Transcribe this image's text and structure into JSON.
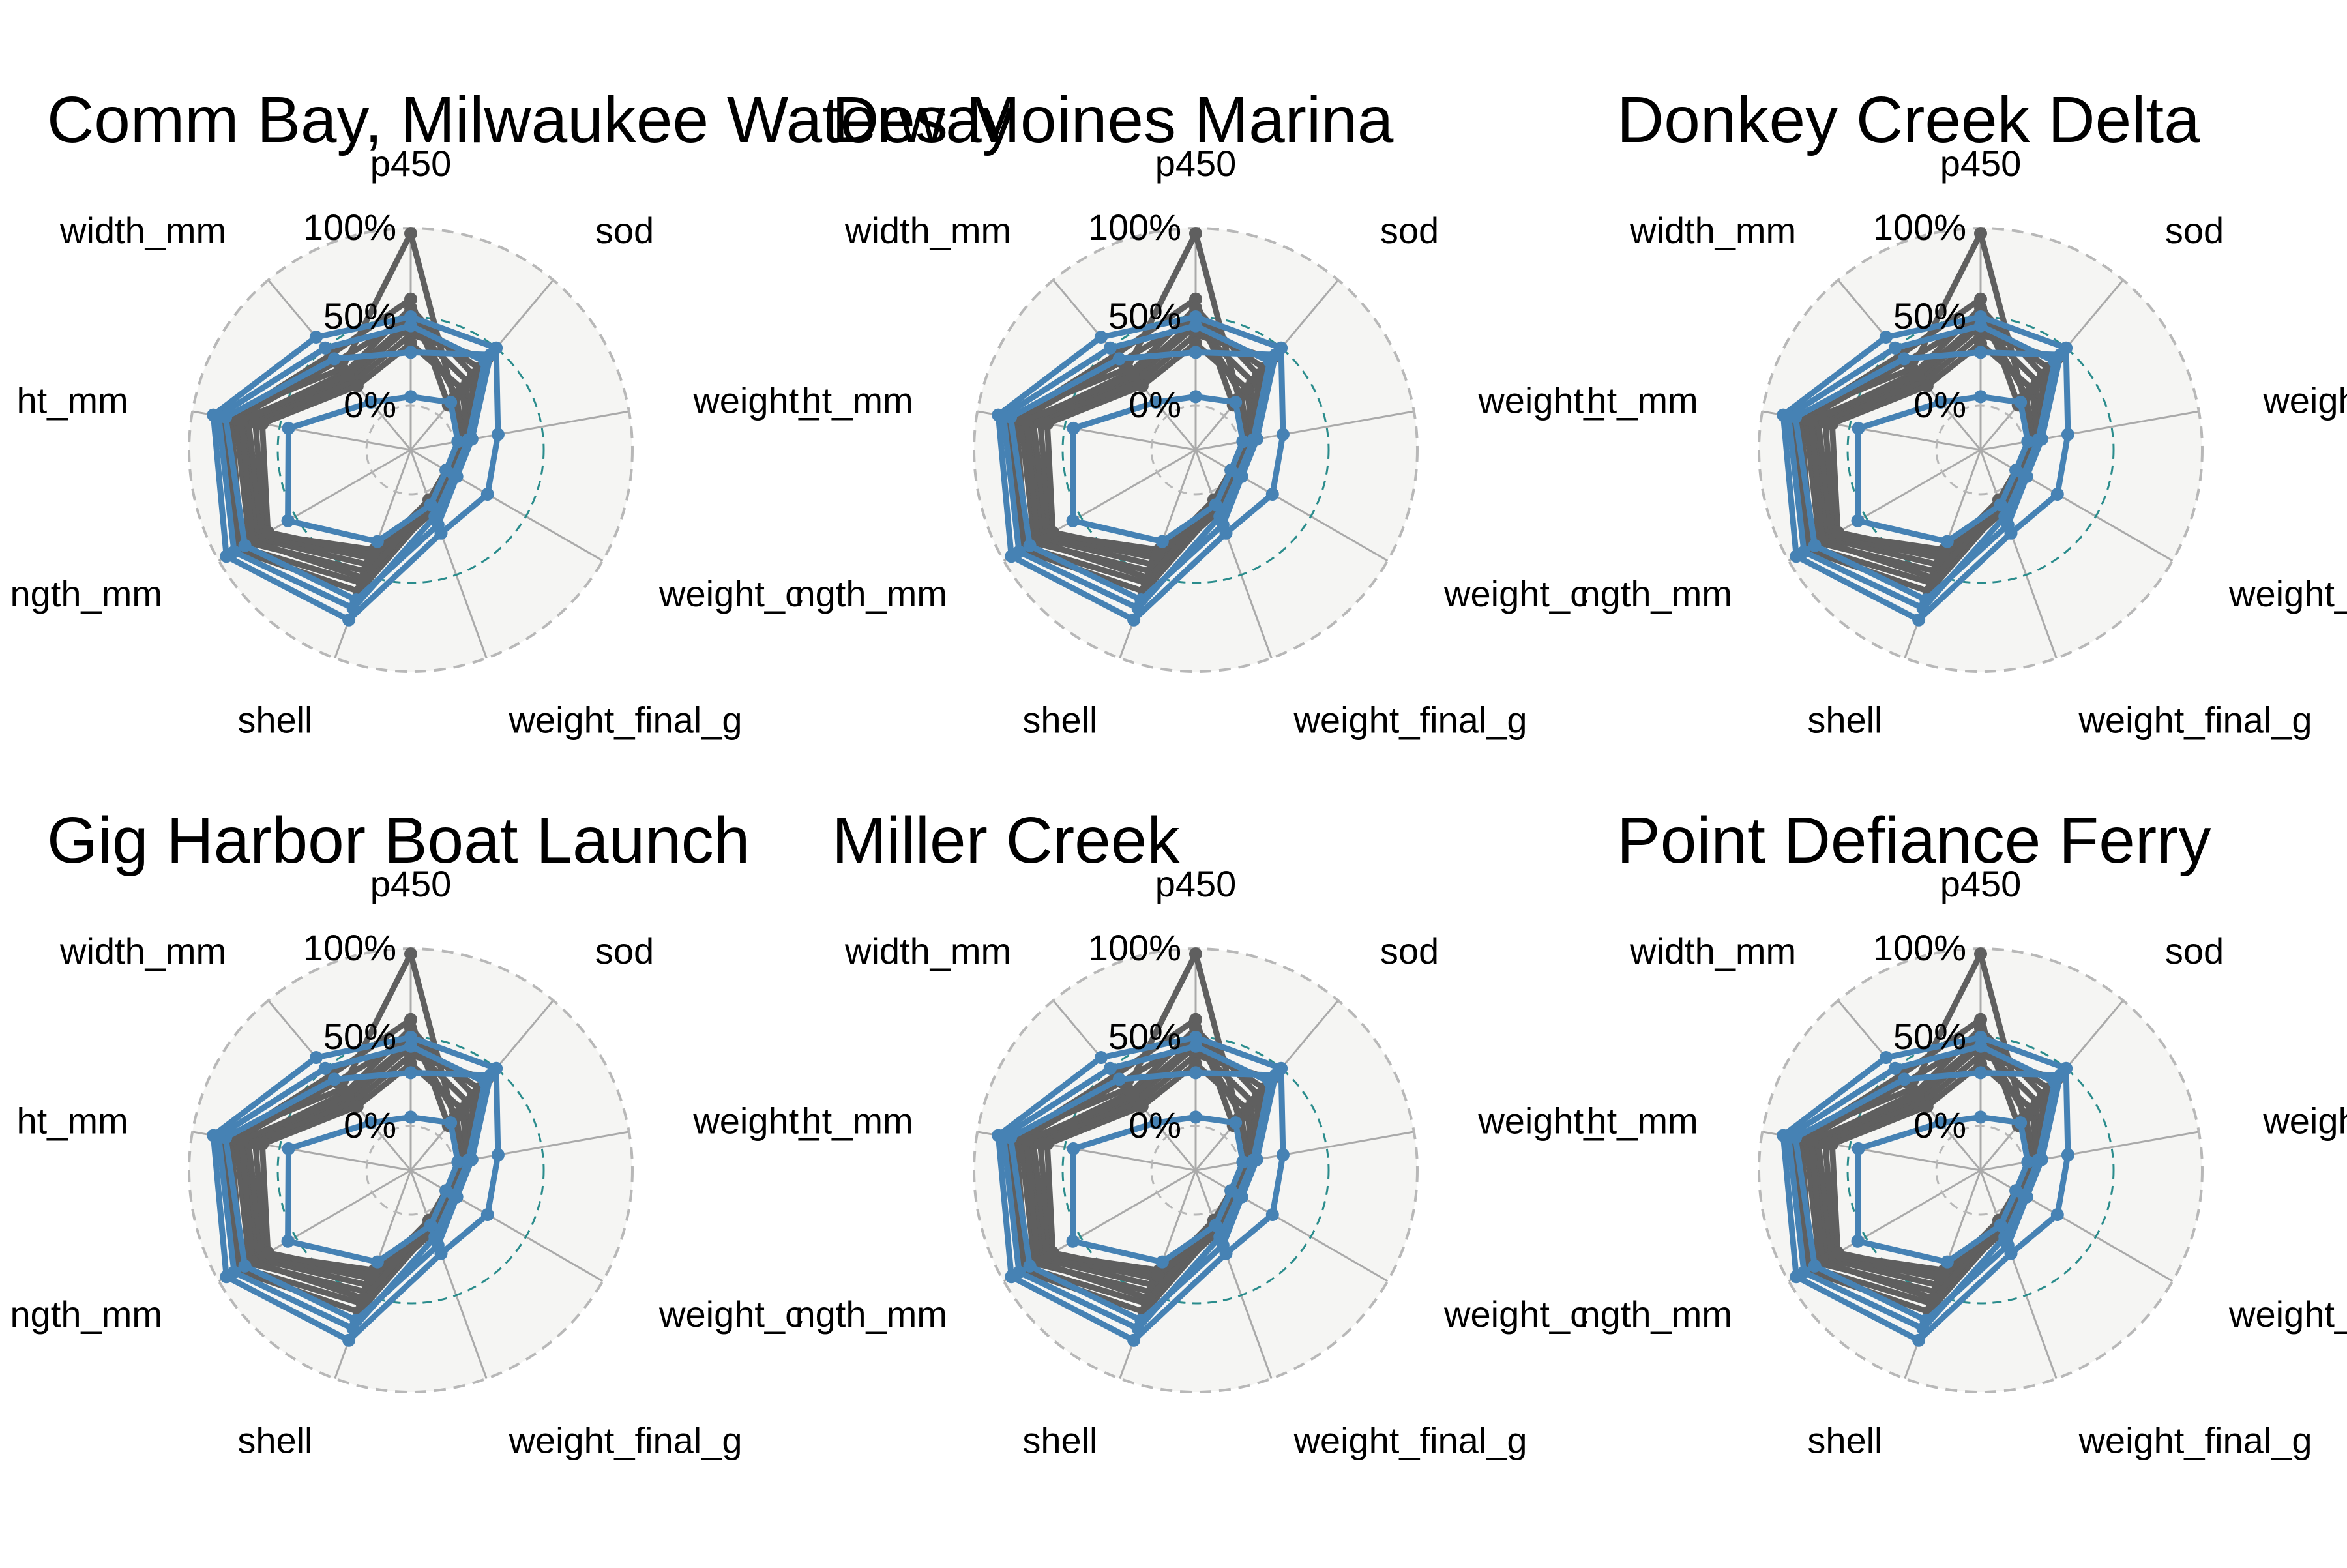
{
  "chart_data": {
    "type": "radar",
    "axes": [
      "p450",
      "sod",
      "weight_initial_g",
      "weight_change_g",
      "weight_final_g",
      "shell",
      "length_mm",
      "height_mm",
      "width_mm"
    ],
    "axis_labels": [
      "p450",
      "sod",
      "weight_",
      "weight_c",
      "weight_final_g",
      "shell",
      "ngth_mm",
      "ht_mm",
      "width_mm"
    ],
    "grid_labels": [
      "0%",
      "50%",
      "100%"
    ],
    "grid_values": [
      0,
      50,
      100
    ],
    "range": [
      -25,
      100
    ],
    "colors": {
      "highlight": "#4682B4",
      "other": "#5F5F5F",
      "mid_ring": "#2A8C8C",
      "outer_ring": "#B8B8B8",
      "spoke": "#AAAAAA",
      "panel_bg": "#F5F5F3"
    },
    "background_series": [
      [
        97,
        13,
        6,
        -1,
        10,
        60,
        88,
        82,
        35
      ],
      [
        60,
        8,
        10,
        1,
        8,
        55,
        85,
        78,
        45
      ],
      [
        50,
        15,
        5,
        3,
        12,
        48,
        80,
        75,
        40
      ],
      [
        55,
        30,
        9,
        2,
        6,
        44,
        75,
        70,
        32
      ],
      [
        45,
        25,
        4,
        -2,
        5,
        40,
        72,
        68,
        28
      ],
      [
        40,
        42,
        7,
        0,
        9,
        35,
        70,
        64,
        25
      ],
      [
        48,
        35,
        3,
        4,
        7,
        52,
        78,
        72,
        30
      ],
      [
        35,
        20,
        8,
        1,
        11,
        38,
        68,
        60,
        22
      ]
    ],
    "panels": [
      {
        "title": "Comm Bay, Milwaukee Waterway",
        "highlight_series": [
          [
            50,
            50,
            25,
            25,
            25,
            77,
            95,
            88,
            58
          ],
          [
            30,
            45,
            10,
            5,
            20,
            65,
            83,
            81,
            42
          ],
          [
            5,
            10,
            2,
            -2,
            8,
            30,
            55,
            45,
            10
          ],
          [
            45,
            40,
            8,
            3,
            15,
            70,
            90,
            85,
            50
          ]
        ]
      },
      {
        "title": "Des Moines Marina",
        "highlight_series": [
          [
            50,
            50,
            25,
            25,
            25,
            77,
            95,
            88,
            58
          ],
          [
            30,
            45,
            10,
            5,
            20,
            65,
            83,
            81,
            42
          ],
          [
            5,
            10,
            2,
            -2,
            8,
            30,
            55,
            45,
            10
          ],
          [
            45,
            40,
            8,
            3,
            15,
            70,
            90,
            85,
            50
          ]
        ]
      },
      {
        "title": "Donkey Creek Delta",
        "highlight_series": [
          [
            50,
            50,
            25,
            25,
            25,
            77,
            95,
            88,
            58
          ],
          [
            30,
            45,
            10,
            5,
            20,
            65,
            83,
            81,
            42
          ],
          [
            5,
            10,
            2,
            -2,
            8,
            30,
            55,
            45,
            10
          ],
          [
            45,
            40,
            8,
            3,
            15,
            70,
            90,
            85,
            50
          ]
        ]
      },
      {
        "title": "Gig Harbor Boat Launch",
        "highlight_series": [
          [
            50,
            50,
            25,
            25,
            25,
            77,
            95,
            88,
            58
          ],
          [
            30,
            45,
            10,
            5,
            20,
            65,
            83,
            81,
            42
          ],
          [
            5,
            10,
            2,
            -2,
            8,
            30,
            55,
            45,
            10
          ],
          [
            45,
            40,
            8,
            3,
            15,
            70,
            90,
            85,
            50
          ]
        ]
      },
      {
        "title": "Miller Creek",
        "highlight_series": [
          [
            50,
            50,
            25,
            25,
            25,
            77,
            95,
            88,
            58
          ],
          [
            30,
            45,
            10,
            5,
            20,
            65,
            83,
            81,
            42
          ],
          [
            5,
            10,
            2,
            -2,
            8,
            30,
            55,
            45,
            10
          ],
          [
            45,
            40,
            8,
            3,
            15,
            70,
            90,
            85,
            50
          ]
        ]
      },
      {
        "title": "Point Defiance Ferry",
        "highlight_series": [
          [
            50,
            50,
            25,
            25,
            25,
            77,
            95,
            88,
            58
          ],
          [
            30,
            45,
            10,
            5,
            20,
            65,
            83,
            81,
            42
          ],
          [
            5,
            10,
            2,
            -2,
            8,
            30,
            55,
            45,
            10
          ],
          [
            45,
            40,
            8,
            3,
            15,
            70,
            90,
            85,
            50
          ]
        ]
      }
    ]
  }
}
